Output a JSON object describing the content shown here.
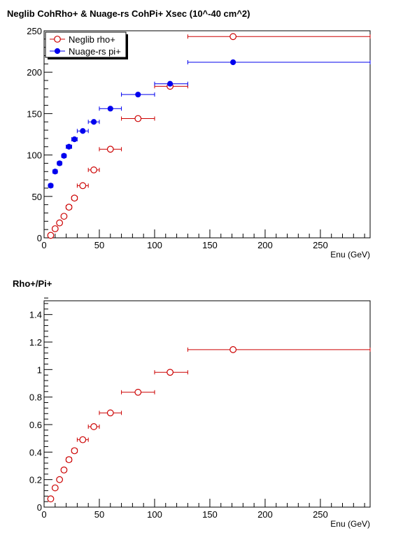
{
  "chart_data": [
    {
      "type": "scatter",
      "title": "Neglib CohRho+ & Nuage-rs CohPi+ Xsec (10^-40 cm^2)",
      "xlabel": "Enu (GeV)",
      "ylabel": "",
      "xlim": [
        0,
        295
      ],
      "ylim": [
        0,
        250
      ],
      "xticks": [
        0,
        50,
        100,
        150,
        200,
        250
      ],
      "yticks": [
        0,
        50,
        100,
        150,
        200,
        250
      ],
      "legend": "top-left",
      "series": [
        {
          "name": "Neglib rho+",
          "marker": "open-circle",
          "color": "#cc0000",
          "points": [
            {
              "x": 6,
              "xlo": 4,
              "xhi": 8,
              "y": 3
            },
            {
              "x": 10,
              "xlo": 8,
              "xhi": 12,
              "y": 11
            },
            {
              "x": 14,
              "xlo": 12,
              "xhi": 16,
              "y": 18
            },
            {
              "x": 18,
              "xlo": 16,
              "xhi": 20,
              "y": 26
            },
            {
              "x": 22.5,
              "xlo": 20,
              "xhi": 25,
              "y": 37
            },
            {
              "x": 27.5,
              "xlo": 25,
              "xhi": 30,
              "y": 48
            },
            {
              "x": 35,
              "xlo": 30,
              "xhi": 40,
              "y": 63
            },
            {
              "x": 45,
              "xlo": 40,
              "xhi": 50,
              "y": 82
            },
            {
              "x": 60,
              "xlo": 50,
              "xhi": 70,
              "y": 107
            },
            {
              "x": 85,
              "xlo": 70,
              "xhi": 100,
              "y": 144
            },
            {
              "x": 114,
              "xlo": 100,
              "xhi": 130,
              "y": 183
            },
            {
              "x": 171,
              "xlo": 130,
              "xhi": 295,
              "y": 243
            }
          ]
        },
        {
          "name": "Nuage-rs pi+",
          "marker": "filled-circle",
          "color": "#0000ee",
          "points": [
            {
              "x": 6,
              "xlo": 4,
              "xhi": 8,
              "y": 63
            },
            {
              "x": 10,
              "xlo": 8,
              "xhi": 12,
              "y": 80
            },
            {
              "x": 14,
              "xlo": 12,
              "xhi": 16,
              "y": 90
            },
            {
              "x": 18,
              "xlo": 16,
              "xhi": 20,
              "y": 99
            },
            {
              "x": 22.5,
              "xlo": 20,
              "xhi": 25,
              "y": 110
            },
            {
              "x": 27.5,
              "xlo": 25,
              "xhi": 30,
              "y": 119
            },
            {
              "x": 35,
              "xlo": 30,
              "xhi": 40,
              "y": 129
            },
            {
              "x": 45,
              "xlo": 40,
              "xhi": 50,
              "y": 140
            },
            {
              "x": 60,
              "xlo": 50,
              "xhi": 70,
              "y": 156
            },
            {
              "x": 85,
              "xlo": 70,
              "xhi": 100,
              "y": 173
            },
            {
              "x": 114,
              "xlo": 100,
              "xhi": 130,
              "y": 186
            },
            {
              "x": 171,
              "xlo": 130,
              "xhi": 295,
              "y": 212
            }
          ]
        }
      ]
    },
    {
      "type": "scatter",
      "title": "Rho+/Pi+",
      "xlabel": "Enu (GeV)",
      "ylabel": "",
      "xlim": [
        0,
        295
      ],
      "ylim": [
        0,
        1.5
      ],
      "xticks": [
        0,
        50,
        100,
        150,
        200,
        250
      ],
      "yticks": [
        0,
        0.2,
        0.4,
        0.6,
        0.8,
        1,
        1.2,
        1.4
      ],
      "ytick_labels": [
        "0",
        "0.2",
        "0.4",
        "0.6",
        "0.8",
        "1",
        "1.2",
        "1.4"
      ],
      "series": [
        {
          "name": "",
          "marker": "open-circle",
          "color": "#cc0000",
          "points": [
            {
              "x": 6,
              "xlo": 4,
              "xhi": 8,
              "y": 0.06
            },
            {
              "x": 10,
              "xlo": 8,
              "xhi": 12,
              "y": 0.14
            },
            {
              "x": 14,
              "xlo": 12,
              "xhi": 16,
              "y": 0.2
            },
            {
              "x": 18,
              "xlo": 16,
              "xhi": 20,
              "y": 0.27
            },
            {
              "x": 22.5,
              "xlo": 20,
              "xhi": 25,
              "y": 0.345
            },
            {
              "x": 27.5,
              "xlo": 25,
              "xhi": 30,
              "y": 0.41
            },
            {
              "x": 35,
              "xlo": 30,
              "xhi": 40,
              "y": 0.49
            },
            {
              "x": 45,
              "xlo": 40,
              "xhi": 50,
              "y": 0.585
            },
            {
              "x": 60,
              "xlo": 50,
              "xhi": 70,
              "y": 0.685
            },
            {
              "x": 85,
              "xlo": 70,
              "xhi": 100,
              "y": 0.835
            },
            {
              "x": 114,
              "xlo": 100,
              "xhi": 130,
              "y": 0.98
            },
            {
              "x": 171,
              "xlo": 130,
              "xhi": 295,
              "y": 1.145
            }
          ]
        }
      ]
    }
  ]
}
